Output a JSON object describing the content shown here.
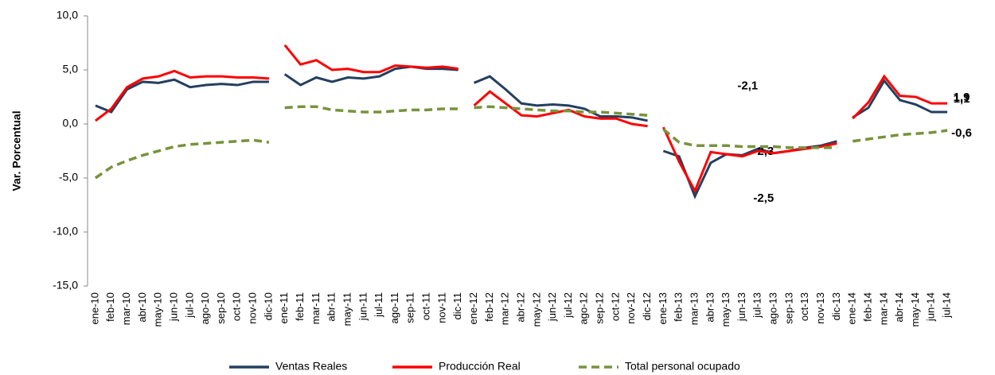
{
  "chart_data": {
    "type": "line",
    "ylabel": "Var. Porcentual",
    "categories": [
      "ene-10",
      "feb-10",
      "mar-10",
      "abr-10",
      "may-10",
      "jun-10",
      "jul-10",
      "ago-10",
      "sep-10",
      "oct-10",
      "nov-10",
      "dic-10",
      "ene-11",
      "feb-11",
      "mar-11",
      "abr-11",
      "may-11",
      "jun-11",
      "jul-11",
      "ago-11",
      "sep-11",
      "oct-11",
      "nov-11",
      "dic-11",
      "ene-12",
      "feb-12",
      "mar-12",
      "abr-12",
      "may-12",
      "jun-12",
      "jul-12",
      "ago-12",
      "sep-12",
      "oct-12",
      "nov-12",
      "dic-12",
      "ene-13",
      "feb-13",
      "mar-13",
      "abr-13",
      "may-13",
      "jun-13",
      "jul-13",
      "ago-13",
      "sep-13",
      "oct-13",
      "nov-13",
      "dic-13",
      "ene-14",
      "feb-14",
      "mar-14",
      "abr-14",
      "may-14",
      "jun-14",
      "jul-14"
    ],
    "series": [
      {
        "name": "Ventas Reales",
        "color": "#243f60",
        "label_color": "#1f78c8",
        "dash": false,
        "values": [
          1.7,
          1.1,
          3.2,
          3.9,
          3.8,
          4.1,
          3.4,
          3.6,
          3.7,
          3.6,
          3.9,
          3.9,
          4.6,
          3.6,
          4.3,
          3.9,
          4.3,
          4.2,
          4.4,
          5.1,
          5.3,
          5.1,
          5.1,
          5.0,
          3.8,
          4.4,
          3.2,
          1.9,
          1.7,
          1.8,
          1.7,
          1.4,
          0.7,
          0.7,
          0.6,
          0.3,
          -2.5,
          -3.0,
          -6.7,
          -3.6,
          -2.8,
          -2.9,
          -2.3,
          -2.7,
          -2.5,
          -2.2,
          -2.0,
          -1.6,
          0.6,
          1.5,
          4.0,
          2.2,
          1.8,
          1.1,
          1.1
        ],
        "value_labels": [
          null,
          null,
          null,
          null,
          null,
          null,
          null,
          null,
          null,
          null,
          null,
          null,
          null,
          null,
          null,
          null,
          null,
          null,
          null,
          null,
          null,
          null,
          null,
          null,
          null,
          null,
          null,
          null,
          null,
          null,
          null,
          null,
          null,
          null,
          null,
          null,
          null,
          null,
          null,
          null,
          null,
          null,
          "-2,3",
          null,
          null,
          null,
          null,
          null,
          null,
          null,
          null,
          null,
          null,
          null,
          "1,1"
        ]
      },
      {
        "name": "Producción Real",
        "color": "#ff0000",
        "label_color": "#ff0000",
        "dash": false,
        "values": [
          0.3,
          1.4,
          3.4,
          4.2,
          4.4,
          4.9,
          4.3,
          4.4,
          4.4,
          4.3,
          4.3,
          4.2,
          7.3,
          5.5,
          5.9,
          5.0,
          5.1,
          4.8,
          4.8,
          5.4,
          5.3,
          5.2,
          5.3,
          5.1,
          1.7,
          3.0,
          1.9,
          0.8,
          0.7,
          1.0,
          1.3,
          0.7,
          0.5,
          0.5,
          0.0,
          -0.2,
          -0.3,
          -3.5,
          -6.2,
          -2.6,
          -2.8,
          -3.0,
          -2.5,
          -2.7,
          -2.5,
          -2.3,
          -2.1,
          -1.8,
          0.5,
          2.0,
          4.4,
          2.6,
          2.5,
          1.9,
          1.9
        ],
        "value_labels": [
          null,
          null,
          null,
          null,
          null,
          null,
          null,
          null,
          null,
          null,
          null,
          null,
          null,
          null,
          null,
          null,
          null,
          null,
          null,
          null,
          null,
          null,
          null,
          null,
          null,
          null,
          null,
          null,
          null,
          null,
          null,
          null,
          null,
          null,
          null,
          null,
          null,
          null,
          null,
          null,
          null,
          null,
          "-2,5",
          null,
          null,
          null,
          null,
          null,
          null,
          null,
          null,
          null,
          null,
          null,
          "1,9"
        ]
      },
      {
        "name": "Total personal  ocupado",
        "color": "#77933c",
        "label_color": "#5f7530",
        "dash": true,
        "values": [
          -5.0,
          -4.0,
          -3.4,
          -2.9,
          -2.5,
          -2.1,
          -1.9,
          -1.8,
          -1.7,
          -1.6,
          -1.5,
          -1.7,
          1.5,
          1.6,
          1.6,
          1.3,
          1.2,
          1.1,
          1.1,
          1.2,
          1.3,
          1.3,
          1.4,
          1.4,
          1.5,
          1.6,
          1.5,
          1.4,
          1.3,
          1.2,
          1.2,
          1.1,
          1.1,
          1.0,
          0.9,
          0.8,
          -0.5,
          -1.7,
          -2.0,
          -2.0,
          -2.0,
          -2.1,
          -2.1,
          -2.1,
          -2.2,
          -2.2,
          -2.2,
          -2.2,
          -1.6,
          -1.4,
          -1.2,
          -1.0,
          -0.9,
          -0.8,
          -0.6
        ],
        "value_labels": [
          null,
          null,
          null,
          null,
          null,
          null,
          null,
          null,
          null,
          null,
          null,
          null,
          null,
          null,
          null,
          null,
          null,
          null,
          null,
          null,
          null,
          null,
          null,
          null,
          null,
          null,
          null,
          null,
          null,
          null,
          null,
          null,
          null,
          null,
          null,
          null,
          null,
          null,
          null,
          null,
          null,
          null,
          "-2,1",
          null,
          null,
          null,
          null,
          null,
          null,
          null,
          null,
          null,
          null,
          null,
          "-0,6"
        ]
      }
    ],
    "ylim": [
      -15,
      10
    ],
    "yticks": [
      {
        "value": -15,
        "label": "-15,0"
      },
      {
        "value": -10,
        "label": "-10,0"
      },
      {
        "value": -5,
        "label": "-5,0"
      },
      {
        "value": 0,
        "label": "0,0"
      },
      {
        "value": 5,
        "label": "5,0"
      },
      {
        "value": 10,
        "label": "10,0"
      }
    ],
    "grid": false,
    "legend": "bottom"
  }
}
